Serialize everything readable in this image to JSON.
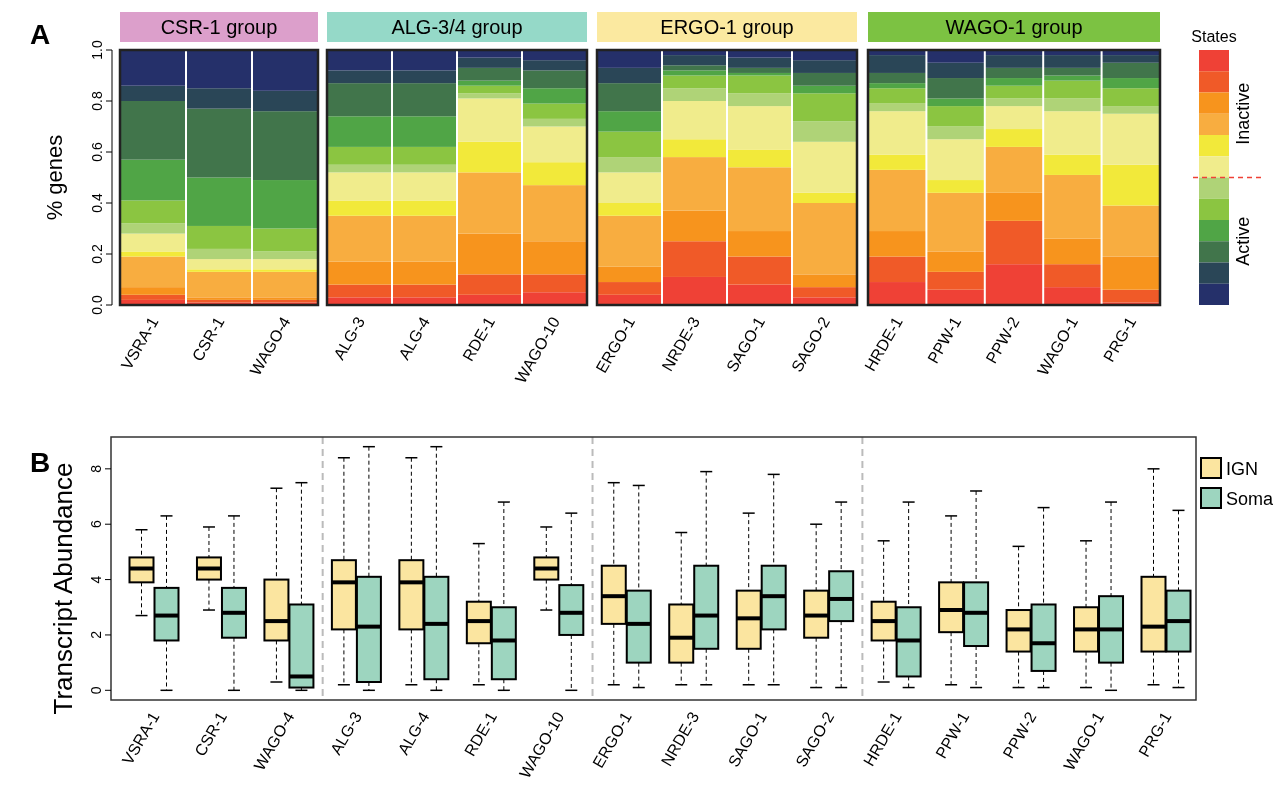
{
  "chart_data": [
    {
      "type": "bar",
      "stacked": true,
      "title": "CSR-1 group",
      "ylabel": "% genes",
      "annotations": [
        "A"
      ],
      "categories": [
        "VSRA-1",
        "CSR-1",
        "WAGO-4"
      ],
      "ylim": [
        0,
        1
      ],
      "yticks": [
        {
          "value": 0,
          "label": "0.0"
        },
        {
          "value": 0.2,
          "label": "0.2"
        },
        {
          "value": 0.4,
          "label": "0.4"
        },
        {
          "value": 0.6,
          "label": "0.6"
        },
        {
          "value": 0.8,
          "label": "0.8"
        },
        {
          "value": 1,
          "label": "1.0"
        }
      ],
      "series": [
        {
          "color": "#ef4136",
          "values": [
            0.02,
            0.01,
            0.01
          ]
        },
        {
          "color": "#f05a28",
          "values": [
            0.02,
            0.01,
            0.01
          ]
        },
        {
          "color": "#f7941d",
          "values": [
            0.03,
            0.01,
            0.01
          ]
        },
        {
          "color": "#f8ad40",
          "values": [
            0.12,
            0.1,
            0.1
          ]
        },
        {
          "color": "#f2e93a",
          "values": [
            0.02,
            0.01,
            0.01
          ]
        },
        {
          "color": "#f0ec8c",
          "values": [
            0.07,
            0.04,
            0.04
          ]
        },
        {
          "color": "#afd377",
          "values": [
            0.04,
            0.04,
            0.03
          ]
        },
        {
          "color": "#8bc541",
          "values": [
            0.09,
            0.09,
            0.09
          ]
        },
        {
          "color": "#50a546",
          "values": [
            0.16,
            0.19,
            0.19
          ]
        },
        {
          "color": "#41754b",
          "values": [
            0.23,
            0.27,
            0.27
          ]
        },
        {
          "color": "#2a4657",
          "values": [
            0.06,
            0.08,
            0.08
          ]
        },
        {
          "color": "#25306a",
          "values": [
            0.14,
            0.15,
            0.16
          ]
        }
      ]
    },
    {
      "type": "bar",
      "stacked": true,
      "title": "ALG-3/4 group",
      "tick_labels": "x",
      "categories": [
        "ALG-3",
        "ALG-4",
        "RDE-1",
        "WAGO-10"
      ],
      "ylim": [
        0,
        1
      ],
      "series": [
        {
          "color": "#ef4136",
          "values": [
            0.03,
            0.03,
            0.04,
            0.05
          ]
        },
        {
          "color": "#f05a28",
          "values": [
            0.05,
            0.05,
            0.08,
            0.07
          ]
        },
        {
          "color": "#f7941d",
          "values": [
            0.09,
            0.09,
            0.16,
            0.13
          ]
        },
        {
          "color": "#f8ad40",
          "values": [
            0.18,
            0.18,
            0.24,
            0.22
          ]
        },
        {
          "color": "#f2e93a",
          "values": [
            0.06,
            0.06,
            0.12,
            0.09
          ]
        },
        {
          "color": "#f0ec8c",
          "values": [
            0.11,
            0.11,
            0.17,
            0.14
          ]
        },
        {
          "color": "#afd377",
          "values": [
            0.03,
            0.03,
            0.02,
            0.03
          ]
        },
        {
          "color": "#8bc541",
          "values": [
            0.07,
            0.07,
            0.03,
            0.06
          ]
        },
        {
          "color": "#50a546",
          "values": [
            0.12,
            0.12,
            0.02,
            0.06
          ]
        },
        {
          "color": "#41754b",
          "values": [
            0.13,
            0.13,
            0.05,
            0.07
          ]
        },
        {
          "color": "#2a4657",
          "values": [
            0.05,
            0.05,
            0.04,
            0.04
          ]
        },
        {
          "color": "#25306a",
          "values": [
            0.08,
            0.08,
            0.03,
            0.04
          ]
        }
      ]
    },
    {
      "type": "bar",
      "stacked": true,
      "title": "ERGO-1 group",
      "tick_labels": "x",
      "categories": [
        "ERGO-1",
        "NRDE-3",
        "SAGO-1",
        "SAGO-2"
      ],
      "ylim": [
        0,
        1
      ],
      "series": [
        {
          "color": "#ef4136",
          "values": [
            0.04,
            0.11,
            0.08,
            0.03
          ]
        },
        {
          "color": "#f05a28",
          "values": [
            0.05,
            0.14,
            0.11,
            0.04
          ]
        },
        {
          "color": "#f7941d",
          "values": [
            0.06,
            0.12,
            0.1,
            0.05
          ]
        },
        {
          "color": "#f8ad40",
          "values": [
            0.2,
            0.21,
            0.25,
            0.28
          ]
        },
        {
          "color": "#f2e93a",
          "values": [
            0.05,
            0.07,
            0.07,
            0.04
          ]
        },
        {
          "color": "#f0ec8c",
          "values": [
            0.12,
            0.15,
            0.17,
            0.2
          ]
        },
        {
          "color": "#afd377",
          "values": [
            0.06,
            0.05,
            0.05,
            0.08
          ]
        },
        {
          "color": "#8bc541",
          "values": [
            0.1,
            0.05,
            0.07,
            0.11
          ]
        },
        {
          "color": "#50a546",
          "values": [
            0.08,
            0.02,
            0.01,
            0.03
          ]
        },
        {
          "color": "#41754b",
          "values": [
            0.11,
            0.02,
            0.02,
            0.05
          ]
        },
        {
          "color": "#2a4657",
          "values": [
            0.06,
            0.04,
            0.04,
            0.05
          ]
        },
        {
          "color": "#25306a",
          "values": [
            0.07,
            0.02,
            0.03,
            0.04
          ]
        }
      ]
    },
    {
      "type": "bar",
      "stacked": true,
      "title": "WAGO-1 group",
      "tick_labels": "x",
      "annotations": [
        "States",
        "Inactive",
        "Active"
      ],
      "categories": [
        "HRDE-1",
        "PPW-1",
        "PPW-2",
        "WAGO-1",
        "PRG-1"
      ],
      "ylim": [
        0,
        1
      ],
      "series": [
        {
          "color": "#ef4136",
          "values": [
            0.09,
            0.06,
            0.16,
            0.07,
            0.01
          ]
        },
        {
          "color": "#f05a28",
          "values": [
            0.1,
            0.07,
            0.17,
            0.09,
            0.05
          ]
        },
        {
          "color": "#f7941d",
          "values": [
            0.1,
            0.08,
            0.11,
            0.1,
            0.13
          ]
        },
        {
          "color": "#f8ad40",
          "values": [
            0.24,
            0.23,
            0.18,
            0.25,
            0.2
          ]
        },
        {
          "color": "#f2e93a",
          "values": [
            0.06,
            0.05,
            0.07,
            0.08,
            0.16
          ]
        },
        {
          "color": "#f0ec8c",
          "values": [
            0.17,
            0.16,
            0.09,
            0.17,
            0.2
          ]
        },
        {
          "color": "#afd377",
          "values": [
            0.03,
            0.05,
            0.03,
            0.05,
            0.03
          ]
        },
        {
          "color": "#8bc541",
          "values": [
            0.06,
            0.08,
            0.05,
            0.07,
            0.07
          ]
        },
        {
          "color": "#50a546",
          "values": [
            0.02,
            0.03,
            0.03,
            0.02,
            0.04
          ]
        },
        {
          "color": "#41754b",
          "values": [
            0.04,
            0.08,
            0.04,
            0.03,
            0.06
          ]
        },
        {
          "color": "#2a4657",
          "values": [
            0.07,
            0.06,
            0.05,
            0.05,
            0.03
          ]
        },
        {
          "color": "#25306a",
          "values": [
            0.02,
            0.05,
            0.02,
            0.02,
            0.02
          ]
        }
      ]
    },
    {
      "type": "box",
      "ylabel": "Transcript Abundance",
      "annotations": [
        "B"
      ],
      "legend": "top right",
      "categories": [
        "VSRA-1",
        "CSR-1",
        "WAGO-4",
        "ALG-3",
        "ALG-4",
        "RDE-1",
        "WAGO-10",
        "ERGO-1",
        "NRDE-3",
        "SAGO-1",
        "SAGO-2",
        "HRDE-1",
        "PPW-1",
        "PPW-2",
        "WAGO-1",
        "PRG-1"
      ],
      "ylim": [
        -0.35,
        9.15
      ],
      "yticks": [
        0,
        2,
        4,
        6,
        8
      ],
      "series": [
        {
          "name": "IGN",
          "color": "#fbe5a0",
          "boxes": [
            {
              "low": 2.7,
              "q1": 3.9,
              "median": 4.4,
              "q3": 4.8,
              "high": 5.8
            },
            {
              "low": 2.9,
              "q1": 4.0,
              "median": 4.4,
              "q3": 4.8,
              "high": 5.9
            },
            {
              "low": 0.3,
              "q1": 1.8,
              "median": 2.5,
              "q3": 4.0,
              "high": 7.3
            },
            {
              "low": 0.2,
              "q1": 2.2,
              "median": 3.9,
              "q3": 4.7,
              "high": 8.4
            },
            {
              "low": 0.2,
              "q1": 2.2,
              "median": 3.9,
              "q3": 4.7,
              "high": 8.4
            },
            {
              "low": 0.2,
              "q1": 1.7,
              "median": 2.5,
              "q3": 3.2,
              "high": 5.3
            },
            {
              "low": 2.9,
              "q1": 4.0,
              "median": 4.4,
              "q3": 4.8,
              "high": 5.9
            },
            {
              "low": 0.2,
              "q1": 2.4,
              "median": 3.4,
              "q3": 4.5,
              "high": 7.5
            },
            {
              "low": 0.2,
              "q1": 1.0,
              "median": 1.9,
              "q3": 3.1,
              "high": 5.7
            },
            {
              "low": 0.2,
              "q1": 1.5,
              "median": 2.6,
              "q3": 3.6,
              "high": 6.4
            },
            {
              "low": 0.1,
              "q1": 1.9,
              "median": 2.7,
              "q3": 3.6,
              "high": 6.0
            },
            {
              "low": 0.3,
              "q1": 1.8,
              "median": 2.5,
              "q3": 3.2,
              "high": 5.4
            },
            {
              "low": 0.2,
              "q1": 2.1,
              "median": 2.9,
              "q3": 3.9,
              "high": 6.3
            },
            {
              "low": 0.1,
              "q1": 1.4,
              "median": 2.2,
              "q3": 2.9,
              "high": 5.2
            },
            {
              "low": 0.1,
              "q1": 1.4,
              "median": 2.2,
              "q3": 3.0,
              "high": 5.4
            },
            {
              "low": 0.2,
              "q1": 1.4,
              "median": 2.3,
              "q3": 4.1,
              "high": 8.0
            }
          ]
        },
        {
          "name": "Soma",
          "color": "#9dd5bf",
          "boxes": [
            {
              "low": 0,
              "q1": 1.8,
              "median": 2.7,
              "q3": 3.7,
              "high": 6.3
            },
            {
              "low": 0,
              "q1": 1.9,
              "median": 2.8,
              "q3": 3.7,
              "high": 6.3
            },
            {
              "low": 0,
              "q1": 0.1,
              "median": 0.5,
              "q3": 3.1,
              "high": 7.5
            },
            {
              "low": 0,
              "q1": 0.3,
              "median": 2.3,
              "q3": 4.1,
              "high": 8.8
            },
            {
              "low": 0,
              "q1": 0.4,
              "median": 2.4,
              "q3": 4.1,
              "high": 8.8
            },
            {
              "low": 0,
              "q1": 0.4,
              "median": 1.8,
              "q3": 3.0,
              "high": 6.8
            },
            {
              "low": 0,
              "q1": 2.0,
              "median": 2.8,
              "q3": 3.8,
              "high": 6.4
            },
            {
              "low": 0.1,
              "q1": 1.0,
              "median": 2.4,
              "q3": 3.6,
              "high": 7.4
            },
            {
              "low": 0.2,
              "q1": 1.5,
              "median": 2.7,
              "q3": 4.5,
              "high": 7.9
            },
            {
              "low": 0.2,
              "q1": 2.2,
              "median": 3.4,
              "q3": 4.5,
              "high": 7.8
            },
            {
              "low": 0.1,
              "q1": 2.5,
              "median": 3.3,
              "q3": 4.3,
              "high": 6.8
            },
            {
              "low": 0.1,
              "q1": 0.5,
              "median": 1.8,
              "q3": 3.0,
              "high": 6.8
            },
            {
              "low": 0.1,
              "q1": 1.6,
              "median": 2.8,
              "q3": 3.9,
              "high": 7.2
            },
            {
              "low": 0.1,
              "q1": 0.7,
              "median": 1.7,
              "q3": 3.1,
              "high": 6.6
            },
            {
              "low": 0,
              "q1": 1.0,
              "median": 2.2,
              "q3": 3.4,
              "high": 6.8
            },
            {
              "low": 0.1,
              "q1": 1.4,
              "median": 2.5,
              "q3": 3.6,
              "high": 6.5
            }
          ]
        }
      ]
    }
  ]
}
